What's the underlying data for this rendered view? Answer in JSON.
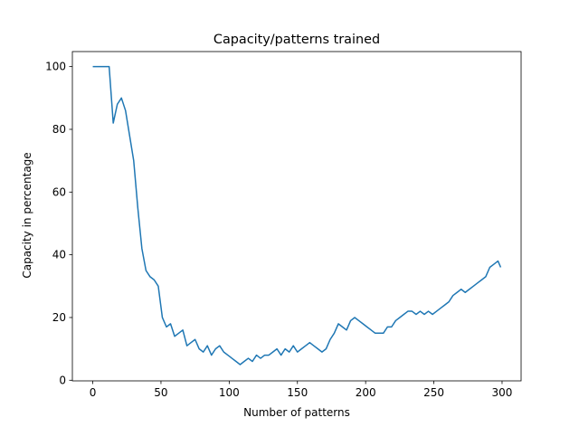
{
  "chart_data": {
    "type": "line",
    "title": "Capacity/patterns trained",
    "x_label": "Number of patterns",
    "y_label": "Capacity in percentage",
    "color": "#1f77b4",
    "x": [
      0,
      3,
      6,
      9,
      12,
      15,
      18,
      21,
      24,
      27,
      30,
      33,
      36,
      39,
      42,
      45,
      48,
      51,
      54,
      57,
      60,
      63,
      66,
      69,
      72,
      75,
      78,
      81,
      84,
      87,
      90,
      93,
      96,
      99,
      102,
      105,
      108,
      111,
      114,
      117,
      120,
      123,
      126,
      129,
      132,
      135,
      138,
      141,
      144,
      147,
      150,
      153,
      156,
      159,
      162,
      165,
      168,
      171,
      174,
      177,
      180,
      183,
      186,
      189,
      192,
      195,
      198,
      201,
      204,
      207,
      210,
      213,
      216,
      219,
      222,
      225,
      228,
      231,
      234,
      237,
      240,
      243,
      246,
      249,
      252,
      255,
      258,
      261,
      264,
      267,
      270,
      273,
      276,
      279,
      282,
      285,
      288,
      291,
      294,
      297,
      299
    ],
    "values": [
      100,
      100,
      100,
      100,
      100,
      82,
      88,
      90,
      86,
      78,
      70,
      55,
      42,
      35,
      33,
      32,
      30,
      20,
      17,
      18,
      14,
      15,
      16,
      11,
      12,
      13,
      10,
      9,
      11,
      8,
      10,
      11,
      9,
      8,
      7,
      6,
      5,
      6,
      7,
      6,
      8,
      7,
      8,
      8,
      9,
      10,
      8,
      10,
      9,
      11,
      9,
      10,
      11,
      12,
      11,
      10,
      9,
      10,
      13,
      15,
      18,
      17,
      16,
      19,
      20,
      19,
      18,
      17,
      16,
      15,
      15,
      15,
      17,
      17,
      19,
      20,
      21,
      22,
      22,
      21,
      22,
      21,
      22,
      21,
      22,
      23,
      24,
      25,
      27,
      28,
      29,
      28,
      29,
      30,
      31,
      32,
      33,
      36,
      37,
      38,
      36
    ],
    "xlim": [
      -14.95,
      313.95
    ],
    "ylim": [
      -0.2,
      104.8
    ],
    "xticks": [
      0,
      50,
      100,
      150,
      200,
      250,
      300
    ],
    "yticks": [
      0,
      20,
      40,
      60,
      80,
      100
    ]
  }
}
